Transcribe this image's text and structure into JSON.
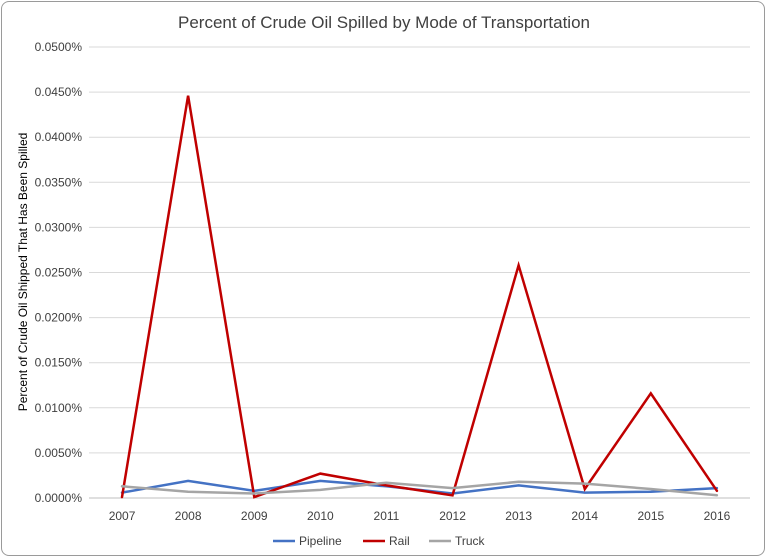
{
  "chart_data": {
    "type": "line",
    "title": "Percent of Crude Oil Spilled by Mode of Transportation",
    "xlabel": "",
    "ylabel": "Percent of Crude Oil Shipped That Has Been Spilled",
    "categories": [
      "2007",
      "2008",
      "2009",
      "2010",
      "2011",
      "2012",
      "2013",
      "2014",
      "2015",
      "2016"
    ],
    "y_ticks": [
      "0.0000%",
      "0.0050%",
      "0.0100%",
      "0.0150%",
      "0.0200%",
      "0.0250%",
      "0.0300%",
      "0.0350%",
      "0.0400%",
      "0.0450%",
      "0.0500%"
    ],
    "ylim": [
      0,
      0.05
    ],
    "grid": true,
    "legend_position": "bottom",
    "series": [
      {
        "name": "Pipeline",
        "color": "#4472C4",
        "values": [
          0.0006,
          0.0019,
          0.0008,
          0.0019,
          0.0013,
          0.0005,
          0.0014,
          0.0006,
          0.0007,
          0.0011
        ]
      },
      {
        "name": "Rail",
        "color": "#C00000",
        "values": [
          0.0001,
          0.0446,
          0.0001,
          0.0027,
          0.0014,
          0.0003,
          0.0258,
          0.001,
          0.0116,
          0.0008
        ]
      },
      {
        "name": "Truck",
        "color": "#A5A5A5",
        "values": [
          0.0013,
          0.0007,
          0.0005,
          0.0009,
          0.0017,
          0.0011,
          0.0018,
          0.0016,
          0.001,
          0.0003
        ]
      }
    ]
  }
}
